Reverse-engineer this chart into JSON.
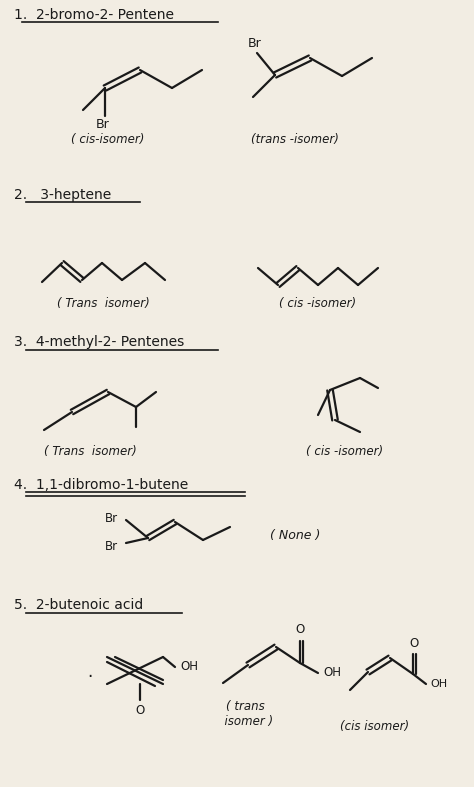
{
  "bg_color": "#f2ede3",
  "tc": "#1a1a1a",
  "title1": "1.  2-bromo-2- Pentene",
  "title2": "2.   3-heptene",
  "title3": "3.  4-methyl-2- Pentenes",
  "title4": "4.  1,1-dibromo-1-butene",
  "title5": "5.  2-butenoic acid",
  "lbl_cis1": "( cis-isomer)",
  "lbl_trans1": "(trans -isomer)",
  "lbl_trans2": "( Trans  isomer)",
  "lbl_cis2": "( cis -isomer)",
  "lbl_trans3": "( Trans  isomer)",
  "lbl_cis3": "( cis -isomer)",
  "lbl_none": "( None )",
  "lbl_trans5": "( trans\n  isomer )",
  "lbl_cis5": "(cis isomer)"
}
